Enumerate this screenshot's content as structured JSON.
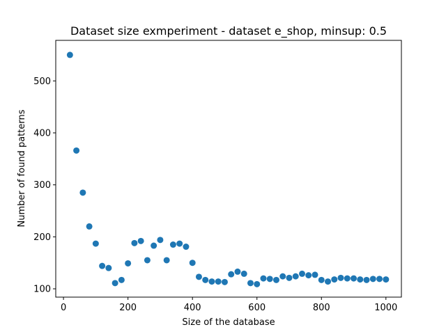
{
  "chart_data": {
    "type": "scatter",
    "title": "Dataset size exmperiment - dataset e_shop, minsup: 0.5",
    "xlabel": "Size of the database",
    "ylabel": "Number of found patterns",
    "xlim": [
      -24,
      1048
    ],
    "ylim": [
      84,
      578
    ],
    "x_ticks": [
      0,
      200,
      400,
      600,
      800,
      1000
    ],
    "y_ticks": [
      100,
      200,
      300,
      400,
      500
    ],
    "grid": false,
    "marker_color": "#1f77b4",
    "series": [
      {
        "x": [
          20,
          40,
          60,
          80,
          100,
          120,
          140,
          160,
          180,
          200,
          220,
          240,
          260,
          280,
          300,
          320,
          340,
          360,
          380,
          400,
          420,
          440,
          460,
          480,
          500,
          520,
          540,
          560,
          580,
          600,
          620,
          640,
          660,
          680,
          700,
          720,
          740,
          760,
          780,
          800,
          820,
          840,
          860,
          880,
          900,
          920,
          940,
          960,
          980,
          1000
        ],
        "y": [
          550,
          366,
          285,
          220,
          187,
          144,
          140,
          111,
          117,
          149,
          188,
          192,
          155,
          183,
          194,
          155,
          185,
          187,
          181,
          150,
          123,
          117,
          114,
          114,
          113,
          128,
          133,
          129,
          111,
          109,
          120,
          119,
          117,
          124,
          121,
          124,
          129,
          126,
          127,
          117,
          114,
          118,
          121,
          120,
          120,
          118,
          117,
          119,
          119,
          118
        ]
      }
    ]
  }
}
